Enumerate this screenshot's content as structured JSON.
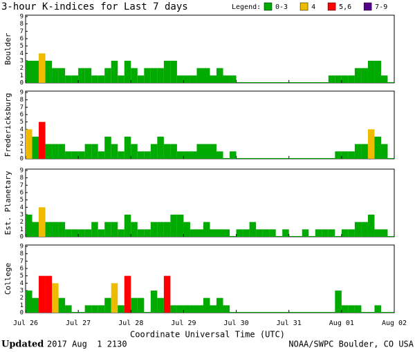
{
  "chart_data": {
    "type": "bar",
    "title": "3-hour K-indices for Last 7 days",
    "legend_title": "Legend:",
    "legend": [
      {
        "name": "0-3",
        "color": "#0a0"
      },
      {
        "name": "4",
        "color": "#eb0"
      },
      {
        "name": "5,6",
        "color": "#f00"
      },
      {
        "name": "7-9",
        "color": "#508"
      }
    ],
    "x_labels": [
      "Jul 26",
      "Jul 27",
      "Jul 28",
      "Jul 29",
      "Jul 30",
      "Jul 31",
      "Aug 01",
      "Aug 02"
    ],
    "xlabel": "Coordinate Universal Time (UTC)",
    "ylim": [
      0,
      9
    ],
    "yticks": [
      0,
      1,
      2,
      3,
      4,
      5,
      6,
      7,
      8,
      9
    ],
    "series": [
      {
        "name": "Boulder",
        "values": [
          3,
          3,
          4,
          3,
          2,
          2,
          1,
          1,
          2,
          2,
          1,
          1,
          2,
          3,
          1,
          3,
          2,
          1,
          2,
          2,
          2,
          3,
          3,
          1,
          1,
          1,
          2,
          2,
          1,
          2,
          1,
          1,
          0,
          0,
          0,
          0,
          0,
          0,
          0,
          0,
          0,
          0,
          0,
          0,
          0,
          0,
          1,
          1,
          1,
          1,
          2,
          2,
          3,
          3,
          1,
          0
        ],
        "colors": [
          "#0a0",
          "#0a0",
          "#eb0",
          "#0a0",
          "#0a0",
          "#0a0",
          "#0a0",
          "#0a0",
          "#0a0",
          "#0a0",
          "#0a0",
          "#0a0",
          "#0a0",
          "#0a0",
          "#0a0",
          "#0a0",
          "#0a0",
          "#0a0",
          "#0a0",
          "#0a0",
          "#0a0",
          "#0a0",
          "#0a0",
          "#0a0",
          "#0a0",
          "#0a0",
          "#0a0",
          "#0a0",
          "#0a0",
          "#0a0",
          "#0a0",
          "#0a0",
          "#0a0",
          "#0a0",
          "#0a0",
          "#0a0",
          "#0a0",
          "#0a0",
          "#0a0",
          "#0a0",
          "#0a0",
          "#0a0",
          "#0a0",
          "#0a0",
          "#0a0",
          "#0a0",
          "#0a0",
          "#0a0",
          "#0a0",
          "#0a0",
          "#0a0",
          "#0a0",
          "#0a0",
          "#0a0",
          "#0a0",
          "#0a0"
        ]
      },
      {
        "name": "Fredericksburg",
        "values": [
          4,
          3,
          5,
          2,
          2,
          2,
          1,
          1,
          1,
          2,
          2,
          1,
          3,
          2,
          1,
          3,
          2,
          1,
          1,
          2,
          3,
          2,
          2,
          1,
          1,
          1,
          2,
          2,
          2,
          1,
          0,
          1,
          0,
          0,
          0,
          0,
          0,
          0,
          0,
          0,
          0,
          0,
          0,
          0,
          0,
          0,
          0,
          1,
          1,
          1,
          2,
          2,
          4,
          3,
          2,
          0
        ],
        "colors": [
          "#eb0",
          "#0a0",
          "#f00",
          "#0a0",
          "#0a0",
          "#0a0",
          "#0a0",
          "#0a0",
          "#0a0",
          "#0a0",
          "#0a0",
          "#0a0",
          "#0a0",
          "#0a0",
          "#0a0",
          "#0a0",
          "#0a0",
          "#0a0",
          "#0a0",
          "#0a0",
          "#0a0",
          "#0a0",
          "#0a0",
          "#0a0",
          "#0a0",
          "#0a0",
          "#0a0",
          "#0a0",
          "#0a0",
          "#0a0",
          "#0a0",
          "#0a0",
          "#0a0",
          "#0a0",
          "#0a0",
          "#0a0",
          "#0a0",
          "#0a0",
          "#0a0",
          "#0a0",
          "#0a0",
          "#0a0",
          "#0a0",
          "#0a0",
          "#0a0",
          "#0a0",
          "#0a0",
          "#0a0",
          "#0a0",
          "#0a0",
          "#0a0",
          "#0a0",
          "#eb0",
          "#0a0",
          "#0a0",
          "#0a0"
        ]
      },
      {
        "name": "Est. Planetary",
        "values": [
          3,
          2,
          4,
          2,
          2,
          2,
          1,
          1,
          1,
          1,
          2,
          1,
          2,
          2,
          1,
          3,
          2,
          1,
          1,
          2,
          2,
          2,
          3,
          3,
          2,
          1,
          1,
          2,
          1,
          1,
          1,
          0,
          1,
          1,
          2,
          1,
          1,
          1,
          0,
          1,
          0,
          0,
          1,
          0,
          1,
          1,
          1,
          0,
          1,
          1,
          2,
          2,
          3,
          1,
          1,
          0
        ],
        "colors": [
          "#0a0",
          "#0a0",
          "#eb0",
          "#0a0",
          "#0a0",
          "#0a0",
          "#0a0",
          "#0a0",
          "#0a0",
          "#0a0",
          "#0a0",
          "#0a0",
          "#0a0",
          "#0a0",
          "#0a0",
          "#0a0",
          "#0a0",
          "#0a0",
          "#0a0",
          "#0a0",
          "#0a0",
          "#0a0",
          "#0a0",
          "#0a0",
          "#0a0",
          "#0a0",
          "#0a0",
          "#0a0",
          "#0a0",
          "#0a0",
          "#0a0",
          "#0a0",
          "#0a0",
          "#0a0",
          "#0a0",
          "#0a0",
          "#0a0",
          "#0a0",
          "#0a0",
          "#0a0",
          "#0a0",
          "#0a0",
          "#0a0",
          "#0a0",
          "#0a0",
          "#0a0",
          "#0a0",
          "#0a0",
          "#0a0",
          "#0a0",
          "#0a0",
          "#0a0",
          "#0a0",
          "#0a0",
          "#0a0",
          "#0a0"
        ]
      },
      {
        "name": "College",
        "values": [
          3,
          2,
          5,
          5,
          4,
          2,
          1,
          0,
          0,
          1,
          1,
          1,
          2,
          4,
          1,
          5,
          2,
          2,
          0,
          3,
          2,
          5,
          1,
          1,
          1,
          1,
          1,
          2,
          1,
          2,
          1,
          0,
          0,
          0,
          0,
          0,
          0,
          0,
          0,
          0,
          0,
          0,
          0,
          0,
          0,
          0,
          0,
          3,
          1,
          1,
          1,
          0,
          0,
          1,
          0,
          0
        ],
        "colors": [
          "#0a0",
          "#0a0",
          "#f00",
          "#f00",
          "#eb0",
          "#0a0",
          "#0a0",
          "#0a0",
          "#0a0",
          "#0a0",
          "#0a0",
          "#0a0",
          "#0a0",
          "#eb0",
          "#0a0",
          "#f00",
          "#0a0",
          "#0a0",
          "#0a0",
          "#0a0",
          "#0a0",
          "#f00",
          "#0a0",
          "#0a0",
          "#0a0",
          "#0a0",
          "#0a0",
          "#0a0",
          "#0a0",
          "#0a0",
          "#0a0",
          "#0a0",
          "#0a0",
          "#0a0",
          "#0a0",
          "#0a0",
          "#0a0",
          "#0a0",
          "#0a0",
          "#0a0",
          "#0a0",
          "#0a0",
          "#0a0",
          "#0a0",
          "#0a0",
          "#0a0",
          "#0a0",
          "#0a0",
          "#0a0",
          "#0a0",
          "#0a0",
          "#0a0",
          "#0a0",
          "#0a0",
          "#0a0",
          "#0a0"
        ]
      }
    ],
    "footer_bold": "Updated",
    "footer_date": "2017 Aug  1 2130",
    "footer_right": "NOAA/SWPC Boulder, CO USA"
  }
}
